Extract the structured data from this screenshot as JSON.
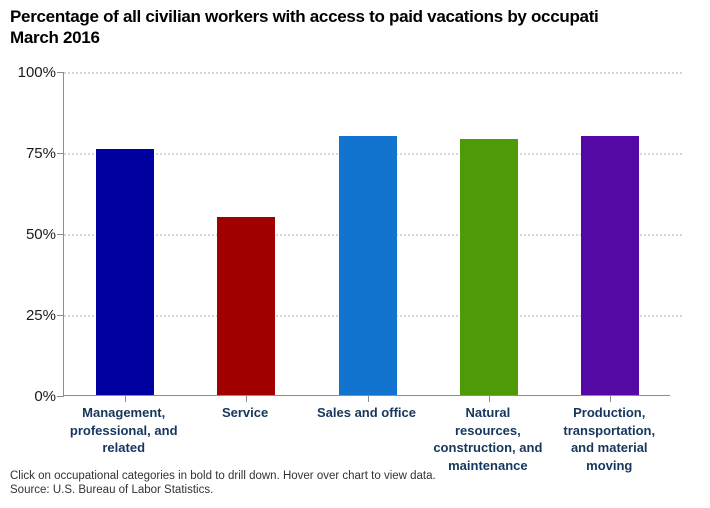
{
  "chart_data": {
    "type": "bar",
    "title": "Percentage of all civilian workers with access to paid vacations by occupati",
    "subtitle": "March 2016",
    "categories": [
      "Management, professional, and related",
      "Service",
      "Sales and office",
      "Natural resources, construction, and maintenance",
      "Production, transportation, and material moving"
    ],
    "values": [
      76,
      55,
      80,
      79,
      80
    ],
    "bar_colors": [
      "#0000A0",
      "#A00000",
      "#1374D0",
      "#4F9B07",
      "#5409A5"
    ],
    "xlabel": "",
    "ylabel": "",
    "ylim": [
      0,
      100
    ],
    "y_ticks": [
      {
        "value": 0,
        "label": "0%"
      },
      {
        "value": 25,
        "label": "25%"
      },
      {
        "value": 50,
        "label": "50%"
      },
      {
        "value": 75,
        "label": "75%"
      },
      {
        "value": 100,
        "label": "100%"
      }
    ],
    "grid": "horizontal-dotted",
    "legend": "none"
  },
  "footer": {
    "note": "Click on occupational categories in bold to drill down. Hover over chart to view data.",
    "source": "Source: U.S. Bureau of Labor Statistics."
  }
}
